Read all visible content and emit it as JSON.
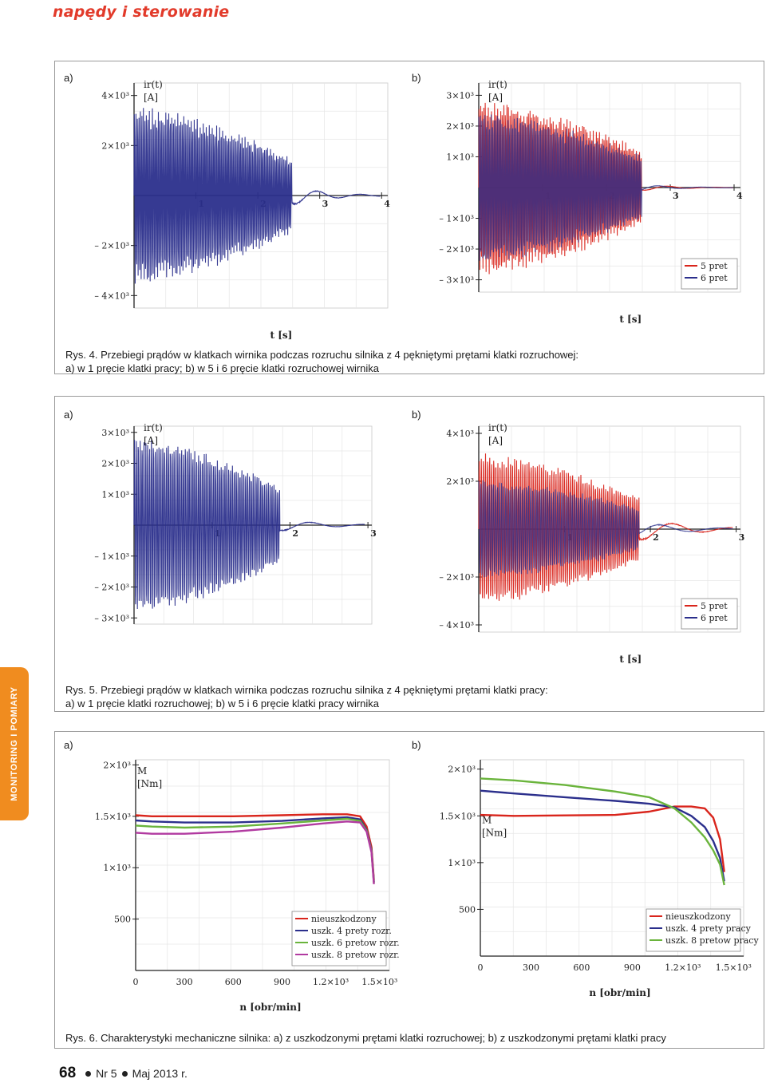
{
  "page": {
    "header": "napędy i sterowanie",
    "side_tab": "MONITORING I POMIARY",
    "footer": {
      "page_number": "68",
      "issue": "Nr 5",
      "date": "Maj 2013 r."
    }
  },
  "colors": {
    "red": "#d9251c",
    "blue": "#2b2f8c",
    "green": "#6ab43c",
    "magenta": "#b13aa0",
    "orange": "#f08c1f"
  },
  "figures": [
    {
      "caption": [
        "Rys. 4. Przebiegi prądów w klatkach wirnika podczas rozruchu silnika z 4 pękniętymi prętami klatki rozruchowej:",
        "a) w 1 pręcie klatki pracy; b) w 5 i 6 pręcie klatki rozruchowej wirnika"
      ],
      "panels": [
        {
          "label": "a)",
          "chart_data": {
            "type": "line",
            "xlabel": "t [s]",
            "ylabel_lines": [
              "ir(t)",
              "[A]"
            ],
            "ylim": [
              -4500,
              4500
            ],
            "xlim": [
              0,
              4.1
            ],
            "yticks": [
              {
                "value": 4000,
                "label": "4×10³"
              },
              {
                "value": 2000,
                "label": "2×10³"
              },
              {
                "value": -2000,
                "label": "– 2×10³"
              },
              {
                "value": -4000,
                "label": "– 4×10³"
              }
            ],
            "xticks": [
              {
                "value": 1,
                "label": "1"
              },
              {
                "value": 2,
                "label": "2"
              },
              {
                "value": 3,
                "label": "3"
              },
              {
                "value": 4,
                "label": "4"
              }
            ],
            "series": [
              {
                "color": "blue",
                "peak": 3600,
                "offset": 0,
                "decay_end": 3.0,
                "osc_tail": 400
              }
            ],
            "legend": []
          }
        },
        {
          "label": "b)",
          "chart_data": {
            "type": "line",
            "xlabel": "t [s]",
            "ylabel_lines": [
              "ir(t)",
              "[A]"
            ],
            "ylim": [
              -3400,
              3400
            ],
            "xlim": [
              0,
              4.1
            ],
            "yticks": [
              {
                "value": 3000,
                "label": "3×10³"
              },
              {
                "value": 2000,
                "label": "2×10³"
              },
              {
                "value": 1000,
                "label": "1×10³"
              },
              {
                "value": -1000,
                "label": "– 1×10³"
              },
              {
                "value": -2000,
                "label": "– 2×10³"
              },
              {
                "value": -3000,
                "label": "– 3×10³"
              }
            ],
            "xticks": [
              {
                "value": 1,
                "label": "1"
              },
              {
                "value": 2,
                "label": "2"
              },
              {
                "value": 3,
                "label": "3"
              },
              {
                "value": 4,
                "label": "4"
              }
            ],
            "series": [
              {
                "name": "5 pret",
                "color": "red",
                "peak": 2900,
                "offset": 0,
                "decay_end": 3.0,
                "osc_tail": 100
              },
              {
                "name": "6 pret",
                "color": "blue",
                "peak": 2500,
                "offset": 0,
                "decay_end": 3.0,
                "osc_tail": 100
              }
            ],
            "legend": [
              "5 pret",
              "6 pret"
            ]
          }
        }
      ]
    },
    {
      "caption": [
        "Rys. 5. Przebiegi  prądów w klatkach wirnika podczas rozruchu silnika z 4 pękniętymi prętami klatki pracy:",
        "a) w 1 pręcie klatki rozruchowej; b) w 5 i 6 pręcie klatki pracy wirnika"
      ],
      "panels": [
        {
          "label": "a)",
          "chart_data": {
            "type": "line",
            "xlabel": "",
            "ylabel_lines": [
              "ir(t)",
              "[A]"
            ],
            "ylim": [
              -3200,
              3200
            ],
            "xlim": [
              0,
              3.05
            ],
            "yticks": [
              {
                "value": 3000,
                "label": "3×10³"
              },
              {
                "value": 2000,
                "label": "2×10³"
              },
              {
                "value": 1000,
                "label": "1×10³"
              },
              {
                "value": -1000,
                "label": "– 1×10³"
              },
              {
                "value": -2000,
                "label": "– 2×10³"
              },
              {
                "value": -3000,
                "label": "– 3×10³"
              }
            ],
            "xticks": [
              {
                "value": 1,
                "label": "1"
              },
              {
                "value": 2,
                "label": "2"
              },
              {
                "value": 3,
                "label": "3"
              }
            ],
            "series": [
              {
                "color": "blue",
                "peak": 2900,
                "offset": 0,
                "decay_end": 2.2,
                "osc_tail": 200
              }
            ],
            "legend": []
          }
        },
        {
          "label": "b)",
          "chart_data": {
            "type": "line",
            "xlabel": "t [s]",
            "ylabel_lines": [
              "ir(t)",
              "[A]"
            ],
            "ylim": [
              -4300,
              4300
            ],
            "xlim": [
              0,
              3.05
            ],
            "yticks": [
              {
                "value": 4000,
                "label": "4×10³"
              },
              {
                "value": 2000,
                "label": "2×10³"
              },
              {
                "value": -2000,
                "label": "– 2×10³"
              },
              {
                "value": -4000,
                "label": "– 4×10³"
              }
            ],
            "xticks": [
              {
                "value": 1,
                "label": "1"
              },
              {
                "value": 2,
                "label": "2"
              },
              {
                "value": 3,
                "label": "3"
              }
            ],
            "series": [
              {
                "name": "5 pret",
                "color": "red",
                "peak": 3200,
                "offset": 0,
                "decay_end": 2.2,
                "osc_tail": 500
              },
              {
                "name": "6 pret",
                "color": "blue",
                "peak": 2100,
                "offset": 0,
                "decay_end": 2.2,
                "osc_tail": 300
              }
            ],
            "legend": [
              "5 pret",
              "6 pret"
            ]
          }
        }
      ]
    },
    {
      "caption": [
        "Rys. 6. Charakterystyki mechaniczne silnika: a) z uszkodzonymi prętami klatki rozruchowej; b)  z uszkodzonymi prętami klatki pracy"
      ],
      "panels": [
        {
          "label": "a)",
          "chart_data": {
            "type": "line",
            "xlabel": "n [obr/min]",
            "ylabel_lines": [
              "M",
              "[Nm]"
            ],
            "ylim": [
              0,
              2050
            ],
            "xlim": [
              0,
              1560
            ],
            "yticks": [
              {
                "value": 2000,
                "label": "2×10³"
              },
              {
                "value": 1500,
                "label": "1.5×10³"
              },
              {
                "value": 1000,
                "label": "1×10³"
              },
              {
                "value": 500,
                "label": "500"
              }
            ],
            "xticks": [
              {
                "value": 0,
                "label": "0"
              },
              {
                "value": 300,
                "label": "300"
              },
              {
                "value": 600,
                "label": "600"
              },
              {
                "value": 900,
                "label": "900"
              },
              {
                "value": 1200,
                "label": "1.2×10³"
              },
              {
                "value": 1500,
                "label": "1.5×10³"
              }
            ],
            "series": [
              {
                "name": "nieuszkodzony",
                "color": "red",
                "x": [
                  0,
                  100,
                  300,
                  600,
                  900,
                  1150,
                  1300,
                  1380,
                  1420,
                  1450,
                  1465
                ],
                "y": [
                  1510,
                  1500,
                  1500,
                  1500,
                  1510,
                  1520,
                  1520,
                  1500,
                  1400,
                  1200,
                  880
                ]
              },
              {
                "name": "uszk. 4 prety rozr.",
                "color": "blue",
                "x": [
                  0,
                  100,
                  300,
                  600,
                  900,
                  1150,
                  1300,
                  1380,
                  1420,
                  1450,
                  1465
                ],
                "y": [
                  1460,
                  1450,
                  1440,
                  1440,
                  1455,
                  1480,
                  1490,
                  1470,
                  1370,
                  1170,
                  860
                ]
              },
              {
                "name": "uszk. 6 pretow rozr.",
                "color": "green",
                "x": [
                  0,
                  100,
                  300,
                  600,
                  900,
                  1150,
                  1300,
                  1380,
                  1420,
                  1450,
                  1465
                ],
                "y": [
                  1410,
                  1400,
                  1390,
                  1400,
                  1430,
                  1460,
                  1475,
                  1455,
                  1360,
                  1160,
                  850
                ]
              },
              {
                "name": "uszk. 8 pretow rozr.",
                "color": "magenta",
                "x": [
                  0,
                  100,
                  300,
                  600,
                  900,
                  1150,
                  1300,
                  1380,
                  1420,
                  1450,
                  1465
                ],
                "y": [
                  1340,
                  1330,
                  1330,
                  1350,
                  1390,
                  1430,
                  1450,
                  1440,
                  1350,
                  1150,
                  840
                ]
              }
            ],
            "legend": [
              "nieuszkodzony",
              "uszk. 4 prety rozr.",
              "uszk. 6 pretow rozr.",
              "uszk. 8 pretow rozr."
            ]
          }
        },
        {
          "label": "b)",
          "chart_data": {
            "type": "line",
            "xlabel": "n [obr/min]",
            "ylabel_lines": [
              "M",
              "[Nm]"
            ],
            "ylim": [
              0,
              2100
            ],
            "xlim": [
              0,
              1560
            ],
            "yticks": [
              {
                "value": 2000,
                "label": "2×10³"
              },
              {
                "value": 1500,
                "label": "1.5×10³"
              },
              {
                "value": 1000,
                "label": "1×10³"
              },
              {
                "value": 500,
                "label": "500"
              }
            ],
            "xticks": [
              {
                "value": 0,
                "label": "0"
              },
              {
                "value": 300,
                "label": "300"
              },
              {
                "value": 600,
                "label": "600"
              },
              {
                "value": 900,
                "label": "900"
              },
              {
                "value": 1200,
                "label": "1.2×10³"
              },
              {
                "value": 1500,
                "label": "1.5×10³"
              }
            ],
            "series": [
              {
                "name": "nieuszkodzony",
                "color": "red",
                "x": [
                  0,
                  200,
                  500,
                  800,
                  1000,
                  1150,
                  1250,
                  1330,
                  1380,
                  1420,
                  1445
                ],
                "y": [
                  1510,
                  1500,
                  1505,
                  1510,
                  1545,
                  1600,
                  1600,
                  1580,
                  1480,
                  1250,
                  900
                ]
              },
              {
                "name": "uszk. 4 prety pracy",
                "color": "blue",
                "x": [
                  0,
                  200,
                  500,
                  800,
                  1000,
                  1150,
                  1250,
                  1330,
                  1380,
                  1420,
                  1445
                ],
                "y": [
                  1770,
                  1740,
                  1700,
                  1660,
                  1630,
                  1590,
                  1500,
                  1380,
                  1230,
                  1050,
                  800
                ]
              },
              {
                "name": "uszk. 8 pretow pracy",
                "color": "green",
                "x": [
                  0,
                  200,
                  500,
                  800,
                  1000,
                  1150,
                  1250,
                  1330,
                  1380,
                  1420,
                  1445
                ],
                "y": [
                  1900,
                  1880,
                  1830,
                  1760,
                  1700,
                  1580,
                  1430,
                  1270,
                  1130,
                  980,
                  760
                ]
              }
            ],
            "legend": [
              "nieuszkodzony",
              "uszk. 4 prety pracy",
              "uszk. 8 pretow pracy"
            ]
          }
        }
      ]
    }
  ]
}
